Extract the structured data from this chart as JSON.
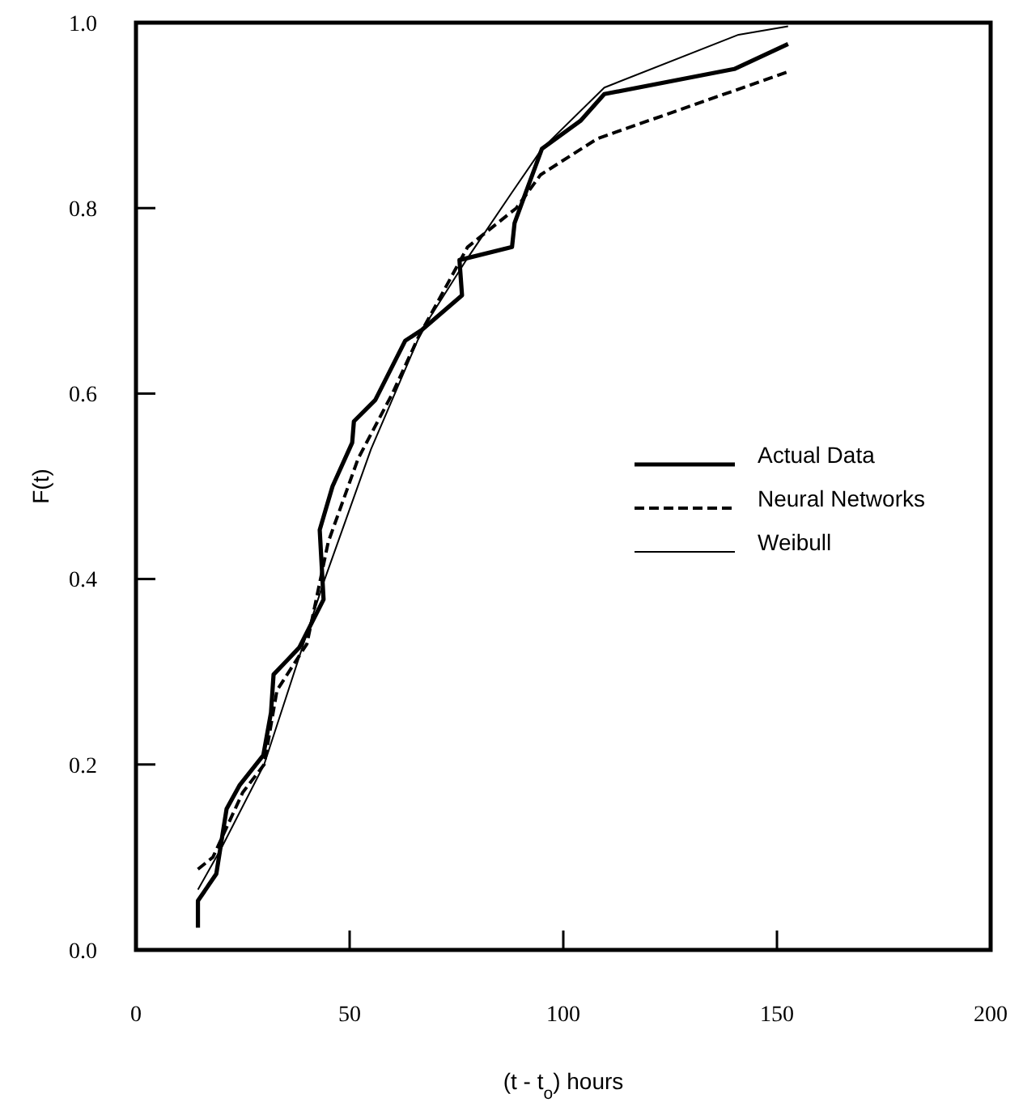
{
  "chart_data": {
    "type": "line",
    "xlabel": "(t - t$_{o}$)  hours",
    "ylabel": "F(t)",
    "xlim": [
      0,
      200
    ],
    "xticks": [
      0,
      50,
      100,
      150,
      200
    ],
    "ylim": [
      0,
      1.0
    ],
    "yticks": [
      {
        "value": 0,
        "label": "0.0"
      },
      {
        "value": 0.2,
        "label": "0.2"
      },
      {
        "value": 0.4,
        "label": "0.4"
      },
      {
        "value": 0.6,
        "label": "0.6"
      },
      {
        "value": 0.8,
        "label": "0.8"
      },
      {
        "value": 1.0,
        "label": "1.0"
      }
    ],
    "grid": false,
    "legend": "right",
    "series": [
      {
        "name": "Actual Data",
        "color": "#000000",
        "line_style": "solid",
        "x": [
          14.5,
          14.5,
          18.8,
          21.2,
          24.3,
          29.8,
          31.6,
          32.2,
          35.3,
          38.2,
          43.9,
          43,
          46,
          50.6,
          51,
          56,
          63,
          67,
          76.3,
          75.7,
          88,
          88.6,
          95,
          104,
          109.6,
          140,
          152.6
        ],
        "values": [
          0.024,
          0.053,
          0.082,
          0.152,
          0.178,
          0.21,
          0.256,
          0.297,
          0.312,
          0.326,
          0.378,
          0.453,
          0.5,
          0.547,
          0.57,
          0.593,
          0.657,
          0.669,
          0.706,
          0.744,
          0.758,
          0.784,
          0.864,
          0.894,
          0.923,
          0.95,
          0.977
        ]
      },
      {
        "name": "Neural Networks",
        "color": "#000000",
        "line_style": "dashed",
        "x": [
          14.5,
          18,
          25,
          30,
          33,
          40,
          45,
          52,
          60,
          66,
          77.6,
          89,
          94.7,
          108,
          152.6
        ],
        "values": [
          0.087,
          0.1,
          0.17,
          0.2,
          0.28,
          0.33,
          0.44,
          0.53,
          0.6,
          0.66,
          0.758,
          0.8,
          0.836,
          0.875,
          0.947
        ]
      },
      {
        "name": "Weibull",
        "color": "#000000",
        "line_style": "solid",
        "x": [
          14.5,
          20,
          30,
          43.8,
          55,
          67,
          77,
          88,
          95,
          109.6,
          141,
          152.6
        ],
        "values": [
          0.065,
          0.11,
          0.2,
          0.395,
          0.54,
          0.669,
          0.742,
          0.817,
          0.864,
          0.93,
          0.987,
          0.996
        ]
      }
    ]
  }
}
